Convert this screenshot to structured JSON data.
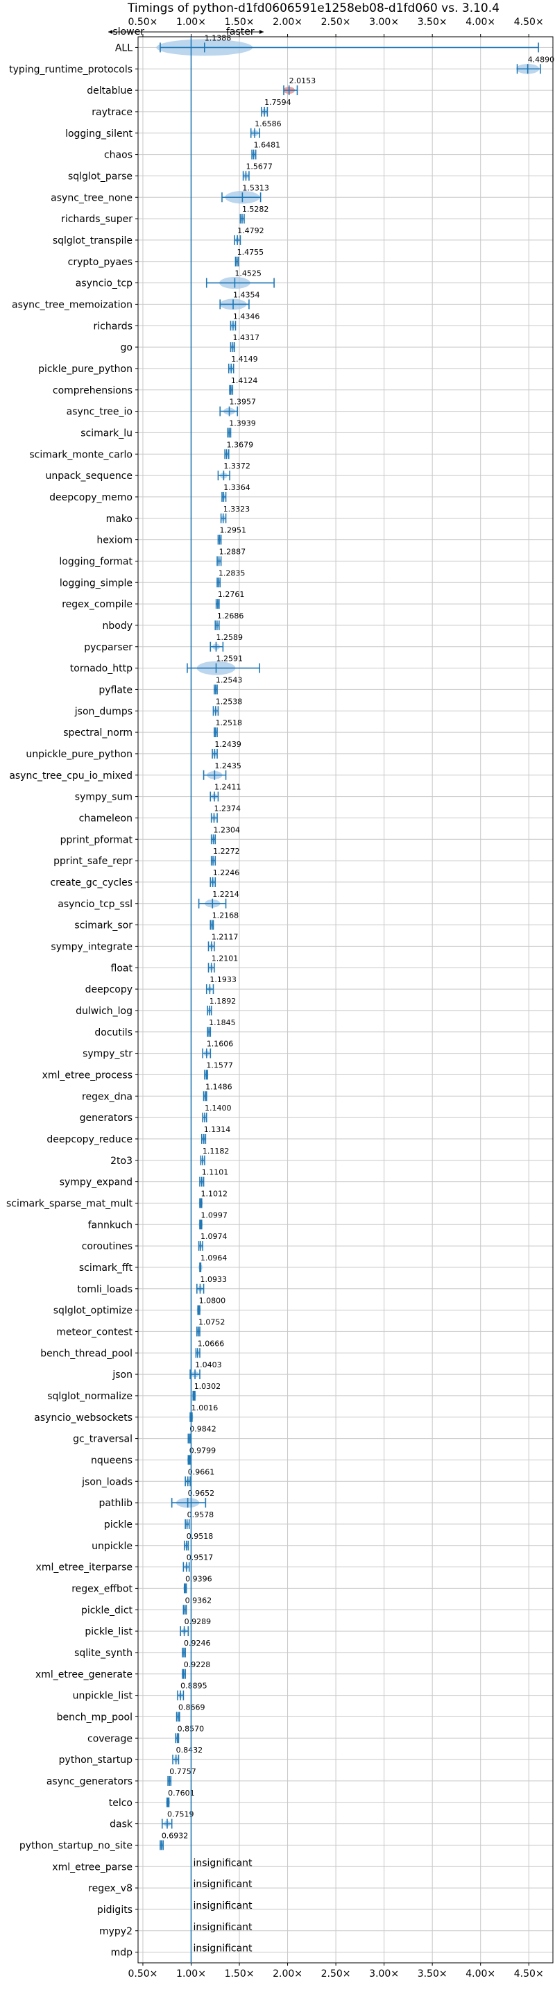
{
  "chart_data": {
    "type": "violin",
    "title": "Timings of python-d1fd0606591e1258eb08-d1fd060 vs. 3.10.4",
    "direction_left": "slower",
    "direction_right": "faster",
    "x_ticks": [
      0.5,
      1.0,
      1.5,
      2.0,
      2.5,
      3.0,
      3.5,
      4.0,
      4.5
    ],
    "x_tick_labels": [
      "0.50×",
      "1.00×",
      "1.50×",
      "2.00×",
      "2.50×",
      "3.00×",
      "3.50×",
      "4.00×",
      "4.50×"
    ],
    "xlim": [
      0.45,
      4.75
    ],
    "reference_x": 1.0,
    "grid": true,
    "colors": {
      "violin": "#a6c8e8",
      "marker": "#1f77b4",
      "highlight": "#e88080",
      "grid": "#c8c8c8"
    },
    "benchmarks": [
      {
        "name": "ALL",
        "value": 1.1388,
        "label": "1.1388",
        "lo": 0.68,
        "hi": 4.6,
        "spread": 0.5
      },
      {
        "name": "typing_runtime_protocols",
        "value": 4.489,
        "label": "4.4890",
        "lo": 4.38,
        "hi": 4.62,
        "spread": 0.12
      },
      {
        "name": "deltablue",
        "value": 2.0153,
        "label": "2.0153",
        "lo": 1.96,
        "hi": 2.1,
        "spread": 0.06,
        "highlight": true
      },
      {
        "name": "raytrace",
        "value": 1.7594,
        "label": "1.7594",
        "lo": 1.73,
        "hi": 1.79,
        "spread": 0.03
      },
      {
        "name": "logging_silent",
        "value": 1.6586,
        "label": "1.6586",
        "lo": 1.62,
        "hi": 1.71,
        "spread": 0.04
      },
      {
        "name": "chaos",
        "value": 1.6481,
        "label": "1.6481",
        "lo": 1.63,
        "hi": 1.67,
        "spread": 0.02
      },
      {
        "name": "sqlglot_parse",
        "value": 1.5677,
        "label": "1.5677",
        "lo": 1.54,
        "hi": 1.6,
        "spread": 0.03
      },
      {
        "name": "async_tree_none",
        "value": 1.5313,
        "label": "1.5313",
        "lo": 1.32,
        "hi": 1.72,
        "spread": 0.18
      },
      {
        "name": "richards_super",
        "value": 1.5282,
        "label": "1.5282",
        "lo": 1.51,
        "hi": 1.55,
        "spread": 0.02
      },
      {
        "name": "sqlglot_transpile",
        "value": 1.4792,
        "label": "1.4792",
        "lo": 1.45,
        "hi": 1.51,
        "spread": 0.02
      },
      {
        "name": "crypto_pyaes",
        "value": 1.4755,
        "label": "1.4755",
        "lo": 1.46,
        "hi": 1.49,
        "spread": 0.015
      },
      {
        "name": "asyncio_tcp",
        "value": 1.4525,
        "label": "1.4525",
        "lo": 1.16,
        "hi": 1.86,
        "spread": 0.16
      },
      {
        "name": "async_tree_memoization",
        "value": 1.4354,
        "label": "1.4354",
        "lo": 1.3,
        "hi": 1.6,
        "spread": 0.14
      },
      {
        "name": "richards",
        "value": 1.4346,
        "label": "1.4346",
        "lo": 1.41,
        "hi": 1.46,
        "spread": 0.02
      },
      {
        "name": "go",
        "value": 1.4317,
        "label": "1.4317",
        "lo": 1.41,
        "hi": 1.45,
        "spread": 0.02
      },
      {
        "name": "pickle_pure_python",
        "value": 1.4149,
        "label": "1.4149",
        "lo": 1.39,
        "hi": 1.44,
        "spread": 0.02
      },
      {
        "name": "comprehensions",
        "value": 1.4124,
        "label": "1.4124",
        "lo": 1.4,
        "hi": 1.43,
        "spread": 0.015
      },
      {
        "name": "async_tree_io",
        "value": 1.3957,
        "label": "1.3957",
        "lo": 1.3,
        "hi": 1.48,
        "spread": 0.06
      },
      {
        "name": "scimark_lu",
        "value": 1.3939,
        "label": "1.3939",
        "lo": 1.38,
        "hi": 1.41,
        "spread": 0.015
      },
      {
        "name": "scimark_monte_carlo",
        "value": 1.3679,
        "label": "1.3679",
        "lo": 1.35,
        "hi": 1.39,
        "spread": 0.015
      },
      {
        "name": "unpack_sequence",
        "value": 1.3372,
        "label": "1.3372",
        "lo": 1.28,
        "hi": 1.4,
        "spread": 0.04
      },
      {
        "name": "deepcopy_memo",
        "value": 1.3364,
        "label": "1.3364",
        "lo": 1.32,
        "hi": 1.36,
        "spread": 0.015
      },
      {
        "name": "mako",
        "value": 1.3323,
        "label": "1.3323",
        "lo": 1.31,
        "hi": 1.36,
        "spread": 0.02
      },
      {
        "name": "hexiom",
        "value": 1.2951,
        "label": "1.2951",
        "lo": 1.28,
        "hi": 1.31,
        "spread": 0.015
      },
      {
        "name": "logging_format",
        "value": 1.2887,
        "label": "1.2887",
        "lo": 1.27,
        "hi": 1.31,
        "spread": 0.02
      },
      {
        "name": "logging_simple",
        "value": 1.2835,
        "label": "1.2835",
        "lo": 1.27,
        "hi": 1.3,
        "spread": 0.02
      },
      {
        "name": "regex_compile",
        "value": 1.2761,
        "label": "1.2761",
        "lo": 1.26,
        "hi": 1.29,
        "spread": 0.015
      },
      {
        "name": "nbody",
        "value": 1.2686,
        "label": "1.2686",
        "lo": 1.25,
        "hi": 1.29,
        "spread": 0.015
      },
      {
        "name": "pycparser",
        "value": 1.2589,
        "label": "1.2589",
        "lo": 1.2,
        "hi": 1.33,
        "spread": 0.04
      },
      {
        "name": "tornado_http",
        "value": 1.2591,
        "label": "1.2591",
        "lo": 0.96,
        "hi": 1.71,
        "spread": 0.2
      },
      {
        "name": "pyflate",
        "value": 1.2543,
        "label": "1.2543",
        "lo": 1.24,
        "hi": 1.27,
        "spread": 0.015
      },
      {
        "name": "json_dumps",
        "value": 1.2538,
        "label": "1.2538",
        "lo": 1.23,
        "hi": 1.28,
        "spread": 0.02
      },
      {
        "name": "spectral_norm",
        "value": 1.2518,
        "label": "1.2518",
        "lo": 1.24,
        "hi": 1.27,
        "spread": 0.015
      },
      {
        "name": "unpickle_pure_python",
        "value": 1.2439,
        "label": "1.2439",
        "lo": 1.22,
        "hi": 1.27,
        "spread": 0.02
      },
      {
        "name": "async_tree_cpu_io_mixed",
        "value": 1.2435,
        "label": "1.2435",
        "lo": 1.13,
        "hi": 1.36,
        "spread": 0.08
      },
      {
        "name": "sympy_sum",
        "value": 1.2411,
        "label": "1.2411",
        "lo": 1.2,
        "hi": 1.28,
        "spread": 0.03
      },
      {
        "name": "chameleon",
        "value": 1.2374,
        "label": "1.2374",
        "lo": 1.21,
        "hi": 1.27,
        "spread": 0.02
      },
      {
        "name": "pprint_pformat",
        "value": 1.2304,
        "label": "1.2304",
        "lo": 1.21,
        "hi": 1.25,
        "spread": 0.015
      },
      {
        "name": "pprint_safe_repr",
        "value": 1.2272,
        "label": "1.2272",
        "lo": 1.21,
        "hi": 1.25,
        "spread": 0.015
      },
      {
        "name": "create_gc_cycles",
        "value": 1.2246,
        "label": "1.2246",
        "lo": 1.2,
        "hi": 1.25,
        "spread": 0.015
      },
      {
        "name": "asyncio_tcp_ssl",
        "value": 1.2214,
        "label": "1.2214",
        "lo": 1.08,
        "hi": 1.36,
        "spread": 0.08
      },
      {
        "name": "scimark_sor",
        "value": 1.2168,
        "label": "1.2168",
        "lo": 1.2,
        "hi": 1.23,
        "spread": 0.015
      },
      {
        "name": "sympy_integrate",
        "value": 1.2117,
        "label": "1.2117",
        "lo": 1.18,
        "hi": 1.24,
        "spread": 0.02
      },
      {
        "name": "float",
        "value": 1.2101,
        "label": "1.2101",
        "lo": 1.18,
        "hi": 1.24,
        "spread": 0.02
      },
      {
        "name": "deepcopy",
        "value": 1.1933,
        "label": "1.1933",
        "lo": 1.16,
        "hi": 1.23,
        "spread": 0.02
      },
      {
        "name": "dulwich_log",
        "value": 1.1892,
        "label": "1.1892",
        "lo": 1.17,
        "hi": 1.21,
        "spread": 0.015
      },
      {
        "name": "docutils",
        "value": 1.1845,
        "label": "1.1845",
        "lo": 1.17,
        "hi": 1.2,
        "spread": 0.015
      },
      {
        "name": "sympy_str",
        "value": 1.1606,
        "label": "1.1606",
        "lo": 1.12,
        "hi": 1.2,
        "spread": 0.03
      },
      {
        "name": "xml_etree_process",
        "value": 1.1577,
        "label": "1.1577",
        "lo": 1.14,
        "hi": 1.17,
        "spread": 0.015
      },
      {
        "name": "regex_dna",
        "value": 1.1486,
        "label": "1.1486",
        "lo": 1.13,
        "hi": 1.16,
        "spread": 0.015
      },
      {
        "name": "generators",
        "value": 1.14,
        "label": "1.1400",
        "lo": 1.12,
        "hi": 1.16,
        "spread": 0.015
      },
      {
        "name": "deepcopy_reduce",
        "value": 1.1314,
        "label": "1.1314",
        "lo": 1.11,
        "hi": 1.15,
        "spread": 0.015
      },
      {
        "name": "2to3",
        "value": 1.1182,
        "label": "1.1182",
        "lo": 1.1,
        "hi": 1.14,
        "spread": 0.015
      },
      {
        "name": "sympy_expand",
        "value": 1.1101,
        "label": "1.1101",
        "lo": 1.09,
        "hi": 1.13,
        "spread": 0.015
      },
      {
        "name": "scimark_sparse_mat_mult",
        "value": 1.1012,
        "label": "1.1012",
        "lo": 1.09,
        "hi": 1.11,
        "spread": 0.01
      },
      {
        "name": "fannkuch",
        "value": 1.0997,
        "label": "1.0997",
        "lo": 1.09,
        "hi": 1.11,
        "spread": 0.01
      },
      {
        "name": "coroutines",
        "value": 1.0974,
        "label": "1.0974",
        "lo": 1.08,
        "hi": 1.12,
        "spread": 0.015
      },
      {
        "name": "scimark_fft",
        "value": 1.0964,
        "label": "1.0964",
        "lo": 1.09,
        "hi": 1.1,
        "spread": 0.01
      },
      {
        "name": "tomli_loads",
        "value": 1.0933,
        "label": "1.0933",
        "lo": 1.06,
        "hi": 1.13,
        "spread": 0.025
      },
      {
        "name": "sqlglot_optimize",
        "value": 1.08,
        "label": "1.0800",
        "lo": 1.07,
        "hi": 1.09,
        "spread": 0.01
      },
      {
        "name": "meteor_contest",
        "value": 1.0752,
        "label": "1.0752",
        "lo": 1.06,
        "hi": 1.09,
        "spread": 0.015
      },
      {
        "name": "bench_thread_pool",
        "value": 1.0666,
        "label": "1.0666",
        "lo": 1.05,
        "hi": 1.09,
        "spread": 0.015
      },
      {
        "name": "json",
        "value": 1.0403,
        "label": "1.0403",
        "lo": 0.99,
        "hi": 1.09,
        "spread": 0.04
      },
      {
        "name": "sqlglot_normalize",
        "value": 1.0302,
        "label": "1.0302",
        "lo": 1.02,
        "hi": 1.04,
        "spread": 0.01
      },
      {
        "name": "asyncio_websockets",
        "value": 1.0016,
        "label": "1.0016",
        "lo": 0.99,
        "hi": 1.01,
        "spread": 0.01
      },
      {
        "name": "gc_traversal",
        "value": 0.9842,
        "label": "0.9842",
        "lo": 0.97,
        "hi": 0.99,
        "spread": 0.01
      },
      {
        "name": "nqueens",
        "value": 0.9799,
        "label": "0.9799",
        "lo": 0.97,
        "hi": 0.99,
        "spread": 0.01
      },
      {
        "name": "json_loads",
        "value": 0.9661,
        "label": "0.9661",
        "lo": 0.94,
        "hi": 0.99,
        "spread": 0.02
      },
      {
        "name": "pathlib",
        "value": 0.9652,
        "label": "0.9652",
        "lo": 0.8,
        "hi": 1.15,
        "spread": 0.12
      },
      {
        "name": "pickle",
        "value": 0.9578,
        "label": "0.9578",
        "lo": 0.94,
        "hi": 0.98,
        "spread": 0.015
      },
      {
        "name": "unpickle",
        "value": 0.9518,
        "label": "0.9518",
        "lo": 0.93,
        "hi": 0.97,
        "spread": 0.015
      },
      {
        "name": "xml_etree_iterparse",
        "value": 0.9517,
        "label": "0.9517",
        "lo": 0.92,
        "hi": 0.98,
        "spread": 0.02
      },
      {
        "name": "regex_effbot",
        "value": 0.9396,
        "label": "0.9396",
        "lo": 0.93,
        "hi": 0.95,
        "spread": 0.01
      },
      {
        "name": "pickle_dict",
        "value": 0.9362,
        "label": "0.9362",
        "lo": 0.92,
        "hi": 0.95,
        "spread": 0.01
      },
      {
        "name": "pickle_list",
        "value": 0.9289,
        "label": "0.9289",
        "lo": 0.89,
        "hi": 0.97,
        "spread": 0.025
      },
      {
        "name": "sqlite_synth",
        "value": 0.9246,
        "label": "0.9246",
        "lo": 0.91,
        "hi": 0.94,
        "spread": 0.015
      },
      {
        "name": "xml_etree_generate",
        "value": 0.9228,
        "label": "0.9228",
        "lo": 0.91,
        "hi": 0.94,
        "spread": 0.015
      },
      {
        "name": "unpickle_list",
        "value": 0.8895,
        "label": "0.8895",
        "lo": 0.86,
        "hi": 0.92,
        "spread": 0.02
      },
      {
        "name": "bench_mp_pool",
        "value": 0.8669,
        "label": "0.8669",
        "lo": 0.85,
        "hi": 0.88,
        "spread": 0.01
      },
      {
        "name": "coverage",
        "value": 0.857,
        "label": "0.8570",
        "lo": 0.84,
        "hi": 0.87,
        "spread": 0.015
      },
      {
        "name": "python_startup",
        "value": 0.8432,
        "label": "0.8432",
        "lo": 0.81,
        "hi": 0.87,
        "spread": 0.02
      },
      {
        "name": "async_generators",
        "value": 0.7757,
        "label": "0.7757",
        "lo": 0.76,
        "hi": 0.79,
        "spread": 0.015
      },
      {
        "name": "telco",
        "value": 0.7601,
        "label": "0.7601",
        "lo": 0.75,
        "hi": 0.77,
        "spread": 0.01
      },
      {
        "name": "dask",
        "value": 0.7519,
        "label": "0.7519",
        "lo": 0.7,
        "hi": 0.8,
        "spread": 0.035
      },
      {
        "name": "python_startup_no_site",
        "value": 0.6932,
        "label": "0.6932",
        "lo": 0.68,
        "hi": 0.71,
        "spread": 0.012
      },
      {
        "name": "xml_etree_parse",
        "value": null,
        "label": "insignificant"
      },
      {
        "name": "regex_v8",
        "value": null,
        "label": "insignificant"
      },
      {
        "name": "pidigits",
        "value": null,
        "label": "insignificant"
      },
      {
        "name": "mypy2",
        "value": null,
        "label": "insignificant"
      },
      {
        "name": "mdp",
        "value": null,
        "label": "insignificant"
      }
    ]
  }
}
